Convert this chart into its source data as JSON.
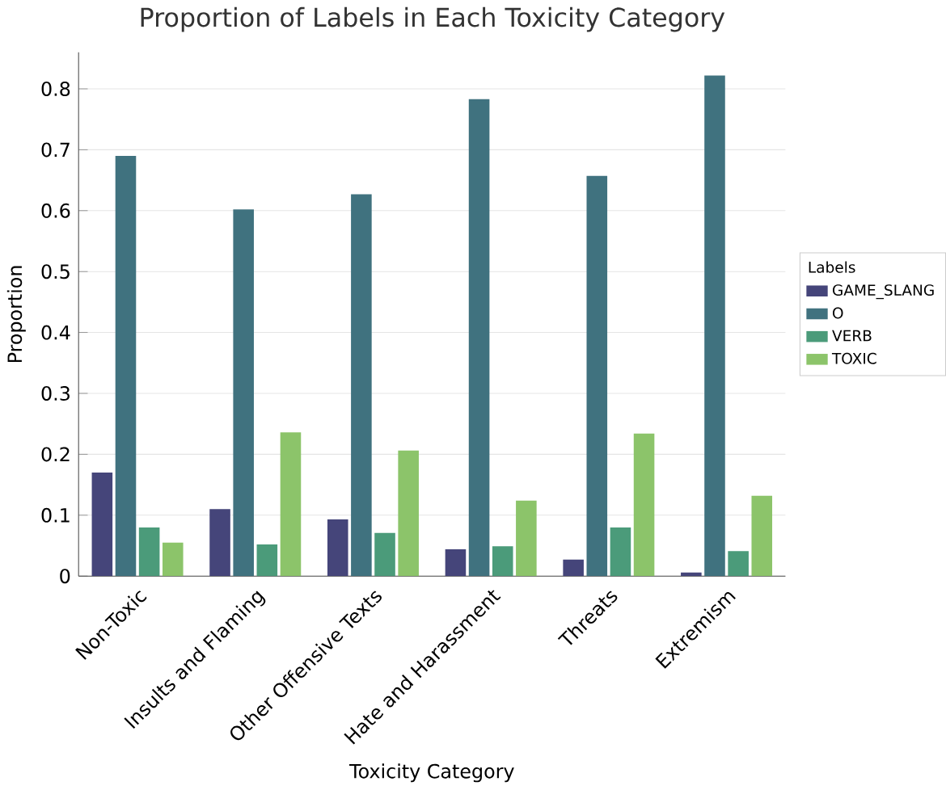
{
  "chart_data": {
    "type": "bar",
    "title": "Proportion of Labels in Each Toxicity Category",
    "xlabel": "Toxicity Category",
    "ylabel": "Proportion",
    "legend_title": "Labels",
    "categories": [
      "Non-Toxic",
      "Insults and Flaming",
      "Other Offensive Texts",
      "Hate and Harassment",
      "Threats",
      "Extremism"
    ],
    "series": [
      {
        "name": "GAME_SLANG",
        "color": "#45457a",
        "values": [
          0.17,
          0.11,
          0.093,
          0.044,
          0.027,
          0.006
        ]
      },
      {
        "name": "O",
        "color": "#40727f",
        "values": [
          0.69,
          0.602,
          0.627,
          0.783,
          0.657,
          0.822
        ]
      },
      {
        "name": "VERB",
        "color": "#4b9b7a",
        "values": [
          0.08,
          0.052,
          0.071,
          0.049,
          0.08,
          0.041
        ]
      },
      {
        "name": "TOXIC",
        "color": "#8cc46a",
        "values": [
          0.055,
          0.236,
          0.206,
          0.124,
          0.234,
          0.132
        ]
      }
    ],
    "ylim": [
      0,
      0.86
    ],
    "yticks": [
      0,
      0.1,
      0.2,
      0.3,
      0.4,
      0.5,
      0.6,
      0.7,
      0.8
    ],
    "grid": "y",
    "legend": "right"
  }
}
